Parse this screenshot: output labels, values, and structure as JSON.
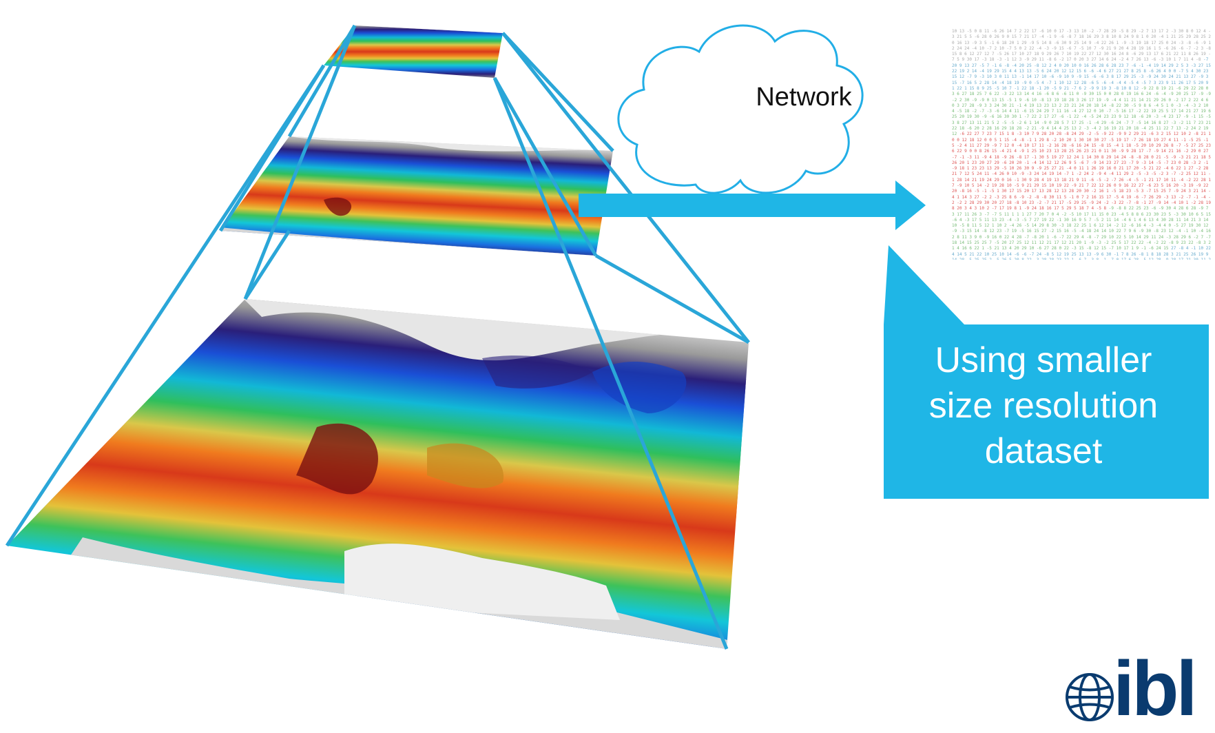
{
  "diagram": {
    "cloud_label": "Network",
    "callout_lines": [
      "Using smaller",
      "size resolution",
      "dataset"
    ],
    "logo_text": "ibl",
    "colors": {
      "accent": "#1fb6e6",
      "pyramid_line": "#2aa6d8",
      "cloud_stroke": "#22aee6",
      "logo": "#0a3b6f"
    },
    "layers": [
      "top-map-layer",
      "middle-map-layer",
      "bottom-map-layer"
    ],
    "icons": [
      "globe-icon",
      "arrow-right-icon",
      "cloud-icon"
    ]
  }
}
